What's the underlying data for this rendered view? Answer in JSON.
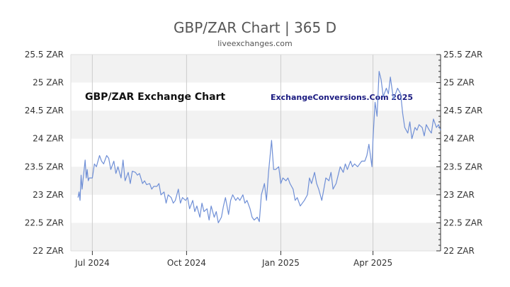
{
  "header": {
    "title": "GBP/ZAR Chart | 365 D",
    "subtitle": "liveexchanges.com"
  },
  "chart_data": {
    "type": "line",
    "title": "GBP/ZAR Exchange Chart",
    "watermark": "ExchangeConversions.Com 2025",
    "xlabel": "",
    "ylabel": "",
    "ylim": [
      22,
      25.5
    ],
    "y_unit": "ZAR",
    "y_ticks": [
      22,
      22.5,
      23,
      23.5,
      24,
      24.5,
      25,
      25.5
    ],
    "y_tick_labels": [
      "22 ZAR",
      "22.5 ZAR",
      "23 ZAR",
      "23.5 ZAR",
      "24 ZAR",
      "24.5 ZAR",
      "25 ZAR",
      "25.5 ZAR"
    ],
    "xlim": [
      "2024-06-10",
      "2025-06-06"
    ],
    "x_ticks": [
      "2024-07-01",
      "2024-10-01",
      "2025-01-01",
      "2025-04-01"
    ],
    "x_tick_labels": [
      "Jul 2024",
      "Oct 2024",
      "Jan 2025",
      "Apr 2025"
    ],
    "grid": true,
    "line_color": "#6f8fd6",
    "band_color": "#f2f2f2",
    "series": [
      {
        "x": [
          "2024-06-17",
          "2024-06-18",
          "2024-06-19",
          "2024-06-20",
          "2024-06-21",
          "2024-06-24",
          "2024-06-25",
          "2024-06-26",
          "2024-06-27",
          "2024-06-28",
          "2024-07-01",
          "2024-07-03",
          "2024-07-05",
          "2024-07-08",
          "2024-07-10",
          "2024-07-12",
          "2024-07-15",
          "2024-07-17",
          "2024-07-19",
          "2024-07-22",
          "2024-07-24",
          "2024-07-26",
          "2024-07-29",
          "2024-07-31",
          "2024-08-02",
          "2024-08-05",
          "2024-08-07",
          "2024-08-09",
          "2024-08-12",
          "2024-08-14",
          "2024-08-16",
          "2024-08-19",
          "2024-08-21",
          "2024-08-23",
          "2024-08-26",
          "2024-08-28",
          "2024-08-30",
          "2024-09-02",
          "2024-09-04",
          "2024-09-06",
          "2024-09-09",
          "2024-09-11",
          "2024-09-13",
          "2024-09-16",
          "2024-09-18",
          "2024-09-20",
          "2024-09-23",
          "2024-09-25",
          "2024-09-27",
          "2024-09-30",
          "2024-10-02",
          "2024-10-04",
          "2024-10-07",
          "2024-10-09",
          "2024-10-11",
          "2024-10-14",
          "2024-10-16",
          "2024-10-18",
          "2024-10-21",
          "2024-10-23",
          "2024-10-25",
          "2024-10-28",
          "2024-10-30",
          "2024-11-01",
          "2024-11-04",
          "2024-11-06",
          "2024-11-08",
          "2024-11-11",
          "2024-11-13",
          "2024-11-15",
          "2024-11-18",
          "2024-11-20",
          "2024-11-22",
          "2024-11-25",
          "2024-11-27",
          "2024-11-29",
          "2024-12-02",
          "2024-12-04",
          "2024-12-06",
          "2024-12-09",
          "2024-12-11",
          "2024-12-13",
          "2024-12-16",
          "2024-12-18",
          "2024-12-20",
          "2024-12-23",
          "2024-12-25",
          "2024-12-27",
          "2024-12-30",
          "2025-01-01",
          "2025-01-03",
          "2025-01-06",
          "2025-01-08",
          "2025-01-10",
          "2025-01-13",
          "2025-01-15",
          "2025-01-17",
          "2025-01-20",
          "2025-01-22",
          "2025-01-24",
          "2025-01-27",
          "2025-01-29",
          "2025-01-31",
          "2025-02-03",
          "2025-02-05",
          "2025-02-07",
          "2025-02-10",
          "2025-02-12",
          "2025-02-14",
          "2025-02-17",
          "2025-02-19",
          "2025-02-21",
          "2025-02-24",
          "2025-02-26",
          "2025-02-28",
          "2025-03-03",
          "2025-03-05",
          "2025-03-07",
          "2025-03-10",
          "2025-03-12",
          "2025-03-14",
          "2025-03-17",
          "2025-03-19",
          "2025-03-21",
          "2025-03-24",
          "2025-03-26",
          "2025-03-28",
          "2025-03-31",
          "2025-04-01",
          "2025-04-03",
          "2025-04-05",
          "2025-04-07",
          "2025-04-09",
          "2025-04-11",
          "2025-04-14",
          "2025-04-16",
          "2025-04-18",
          "2025-04-21",
          "2025-04-23",
          "2025-04-25",
          "2025-04-28",
          "2025-04-30",
          "2025-05-02",
          "2025-05-05",
          "2025-05-07",
          "2025-05-09",
          "2025-05-12",
          "2025-05-14",
          "2025-05-16",
          "2025-05-19",
          "2025-05-21",
          "2025-05-23",
          "2025-05-26",
          "2025-05-28",
          "2025-05-30",
          "2025-06-02",
          "2025-06-04",
          "2025-06-06"
        ],
        "values": [
          22.95,
          23.05,
          22.9,
          23.35,
          23.1,
          23.62,
          23.3,
          23.45,
          23.25,
          23.3,
          23.3,
          23.55,
          23.5,
          23.7,
          23.6,
          23.55,
          23.7,
          23.65,
          23.45,
          23.6,
          23.38,
          23.5,
          23.3,
          23.62,
          23.25,
          23.4,
          23.2,
          23.42,
          23.4,
          23.35,
          23.38,
          23.2,
          23.25,
          23.18,
          23.2,
          23.1,
          23.15,
          23.15,
          23.2,
          23.0,
          23.05,
          22.85,
          23.0,
          22.95,
          22.85,
          22.9,
          23.1,
          22.85,
          22.95,
          22.9,
          22.95,
          22.75,
          22.9,
          22.7,
          22.8,
          22.6,
          22.85,
          22.7,
          22.75,
          22.55,
          22.8,
          22.6,
          22.7,
          22.5,
          22.6,
          22.8,
          22.95,
          22.65,
          22.9,
          23.0,
          22.9,
          22.95,
          22.9,
          23.0,
          22.85,
          22.9,
          22.75,
          22.6,
          22.55,
          22.6,
          22.52,
          23.0,
          23.2,
          22.9,
          23.4,
          23.97,
          23.45,
          23.45,
          23.5,
          23.2,
          23.3,
          23.25,
          23.3,
          23.2,
          23.1,
          22.9,
          22.95,
          22.8,
          22.85,
          22.9,
          23.0,
          23.3,
          23.2,
          23.4,
          23.2,
          23.1,
          22.9,
          23.1,
          23.3,
          23.25,
          23.4,
          23.1,
          23.2,
          23.35,
          23.5,
          23.4,
          23.55,
          23.45,
          23.6,
          23.5,
          23.55,
          23.5,
          23.55,
          23.6,
          23.6,
          23.7,
          23.9,
          23.5,
          24.0,
          24.65,
          24.4,
          25.2,
          25.05,
          24.75,
          24.9,
          24.8,
          25.1,
          24.7,
          24.8,
          24.9,
          24.8,
          24.45,
          24.2,
          24.1,
          24.3,
          24.0,
          24.2,
          24.15,
          24.25,
          24.2,
          24.05,
          24.25,
          24.15,
          24.1,
          24.35,
          24.2,
          24.25,
          24.15
        ]
      }
    ]
  }
}
